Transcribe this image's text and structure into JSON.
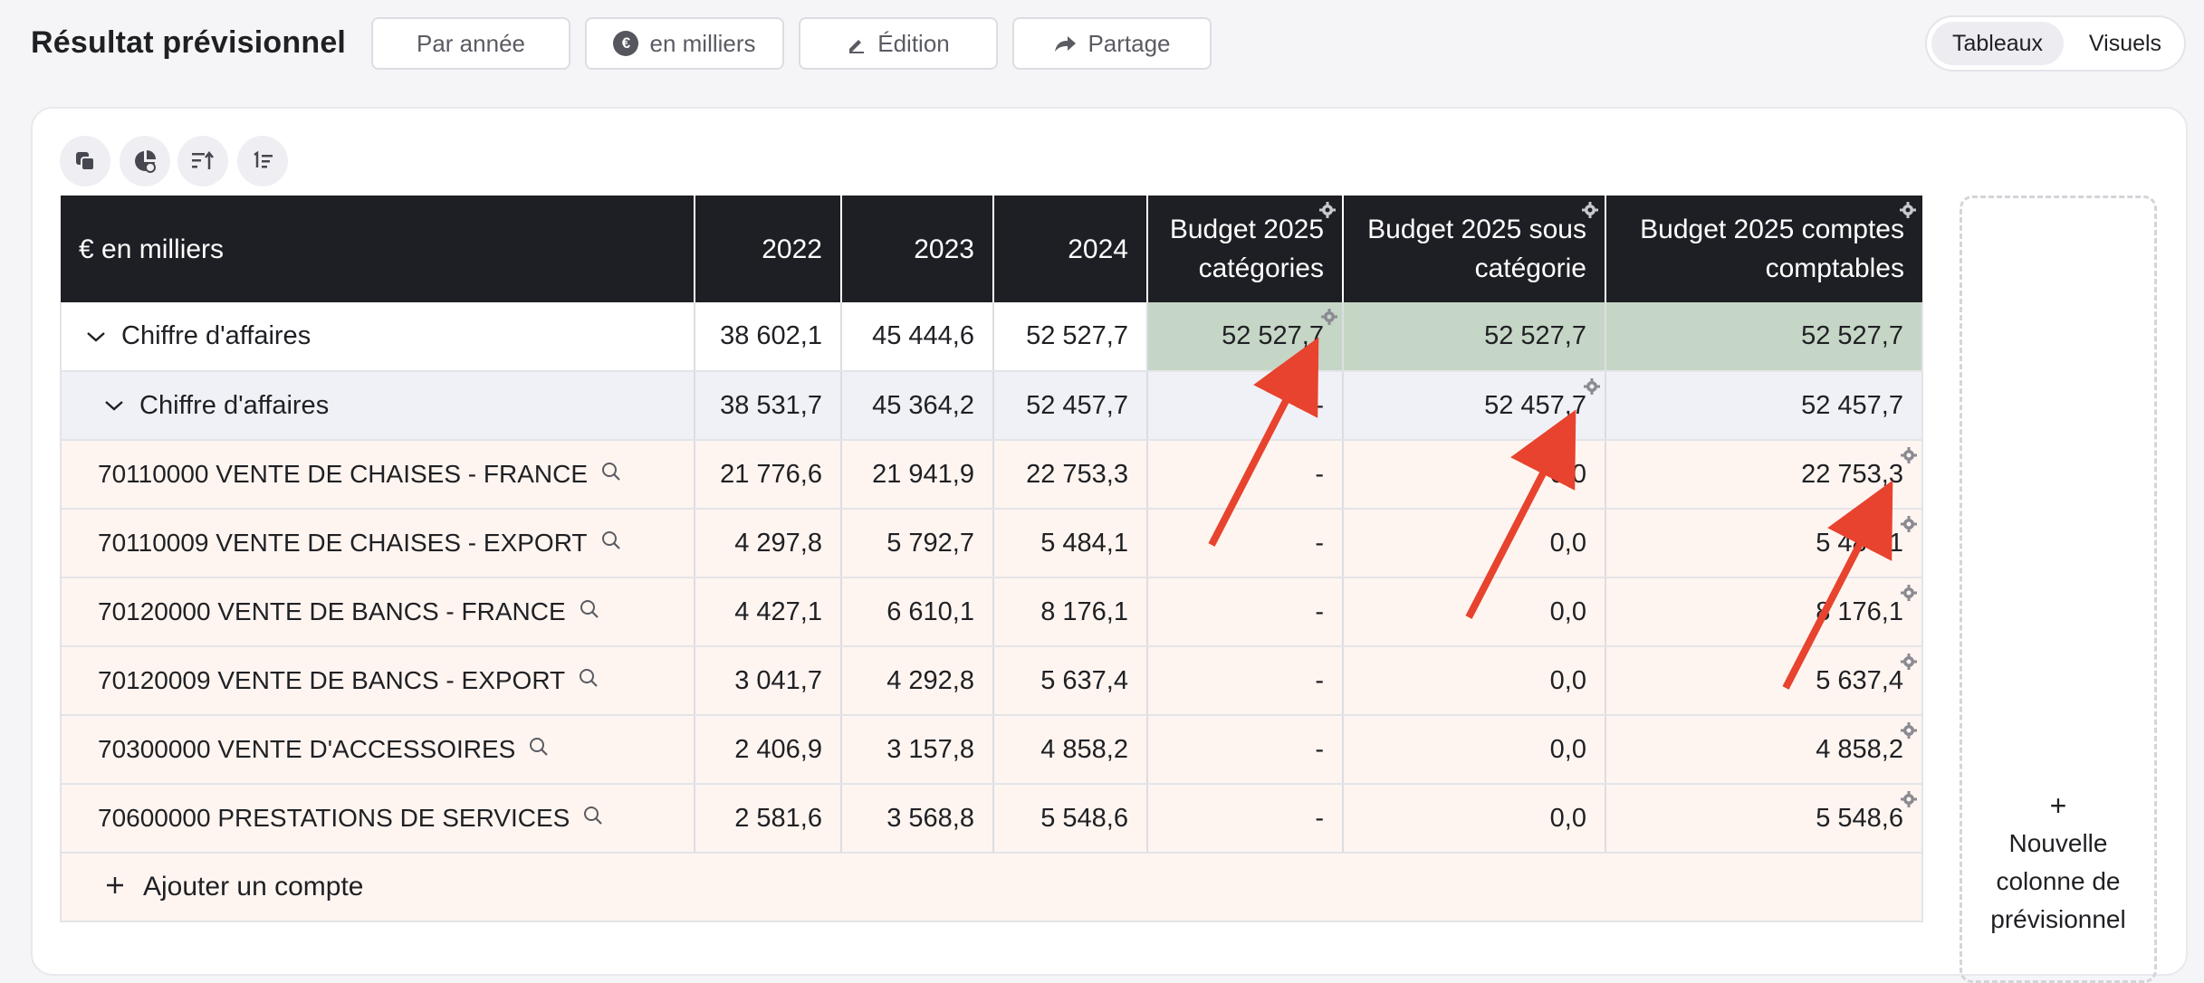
{
  "header": {
    "title": "Résultat prévisionnel",
    "buttons": {
      "year": "Par année",
      "thousands": "en milliers",
      "edition": "Édition",
      "share": "Partage"
    },
    "view_toggle": {
      "tables": "Tableaux",
      "visuals": "Visuels",
      "active": "Tableaux"
    }
  },
  "toolbar": {
    "icons": [
      "copy-icon",
      "chart-refresh-icon",
      "sort-asc-icon",
      "sort-numeric-icon"
    ]
  },
  "table": {
    "label_header": "€ en milliers",
    "columns": [
      "2022",
      "2023",
      "2024",
      "Budget 2025 catégories",
      "Budget 2025 sous catégorie",
      "Budget 2025 comptes comptables"
    ],
    "rows": [
      {
        "type": "level1",
        "label": "Chiffre d'affaires",
        "values": [
          "38 602,1",
          "45 444,6",
          "52 527,7",
          "52 527,7",
          "52 527,7",
          "52 527,7"
        ]
      },
      {
        "type": "level2",
        "label": "Chiffre d'affaires",
        "values": [
          "38 531,7",
          "45 364,2",
          "52 457,7",
          "-",
          "52 457,7",
          "52 457,7"
        ]
      },
      {
        "type": "account",
        "label": "70110000 VENTE DE CHAISES - FRANCE",
        "values": [
          "21 776,6",
          "21 941,9",
          "22 753,3",
          "-",
          "0,0",
          "22 753,3"
        ]
      },
      {
        "type": "account",
        "label": "70110009 VENTE DE CHAISES - EXPORT",
        "values": [
          "4 297,8",
          "5 792,7",
          "5 484,1",
          "-",
          "0,0",
          "5 484,1"
        ]
      },
      {
        "type": "account",
        "label": "70120000 VENTE DE BANCS - FRANCE",
        "values": [
          "4 427,1",
          "6 610,1",
          "8 176,1",
          "-",
          "0,0",
          "8 176,1"
        ]
      },
      {
        "type": "account",
        "label": "70120009 VENTE DE BANCS - EXPORT",
        "values": [
          "3 041,7",
          "4 292,8",
          "5 637,4",
          "-",
          "0,0",
          "5 637,4"
        ]
      },
      {
        "type": "account",
        "label": "70300000 VENTE D'ACCESSOIRES",
        "values": [
          "2 406,9",
          "3 157,8",
          "4 858,2",
          "-",
          "0,0",
          "4 858,2"
        ]
      },
      {
        "type": "account",
        "label": "70600000 PRESTATIONS DE SERVICES",
        "values": [
          "2 581,6",
          "3 568,8",
          "5 548,6",
          "-",
          "0,0",
          "5 548,6"
        ]
      }
    ],
    "add_account": "Ajouter un compte"
  },
  "new_column": {
    "plus": "+",
    "label_line1": "Nouvelle",
    "label_line2": "colonne de",
    "label_line3": "prévisionnel"
  },
  "colors": {
    "header_bg": "#1e1f24",
    "highlight": "#c6d6c6",
    "account_bg": "#fff5f0",
    "arrow": "#e8432e"
  }
}
